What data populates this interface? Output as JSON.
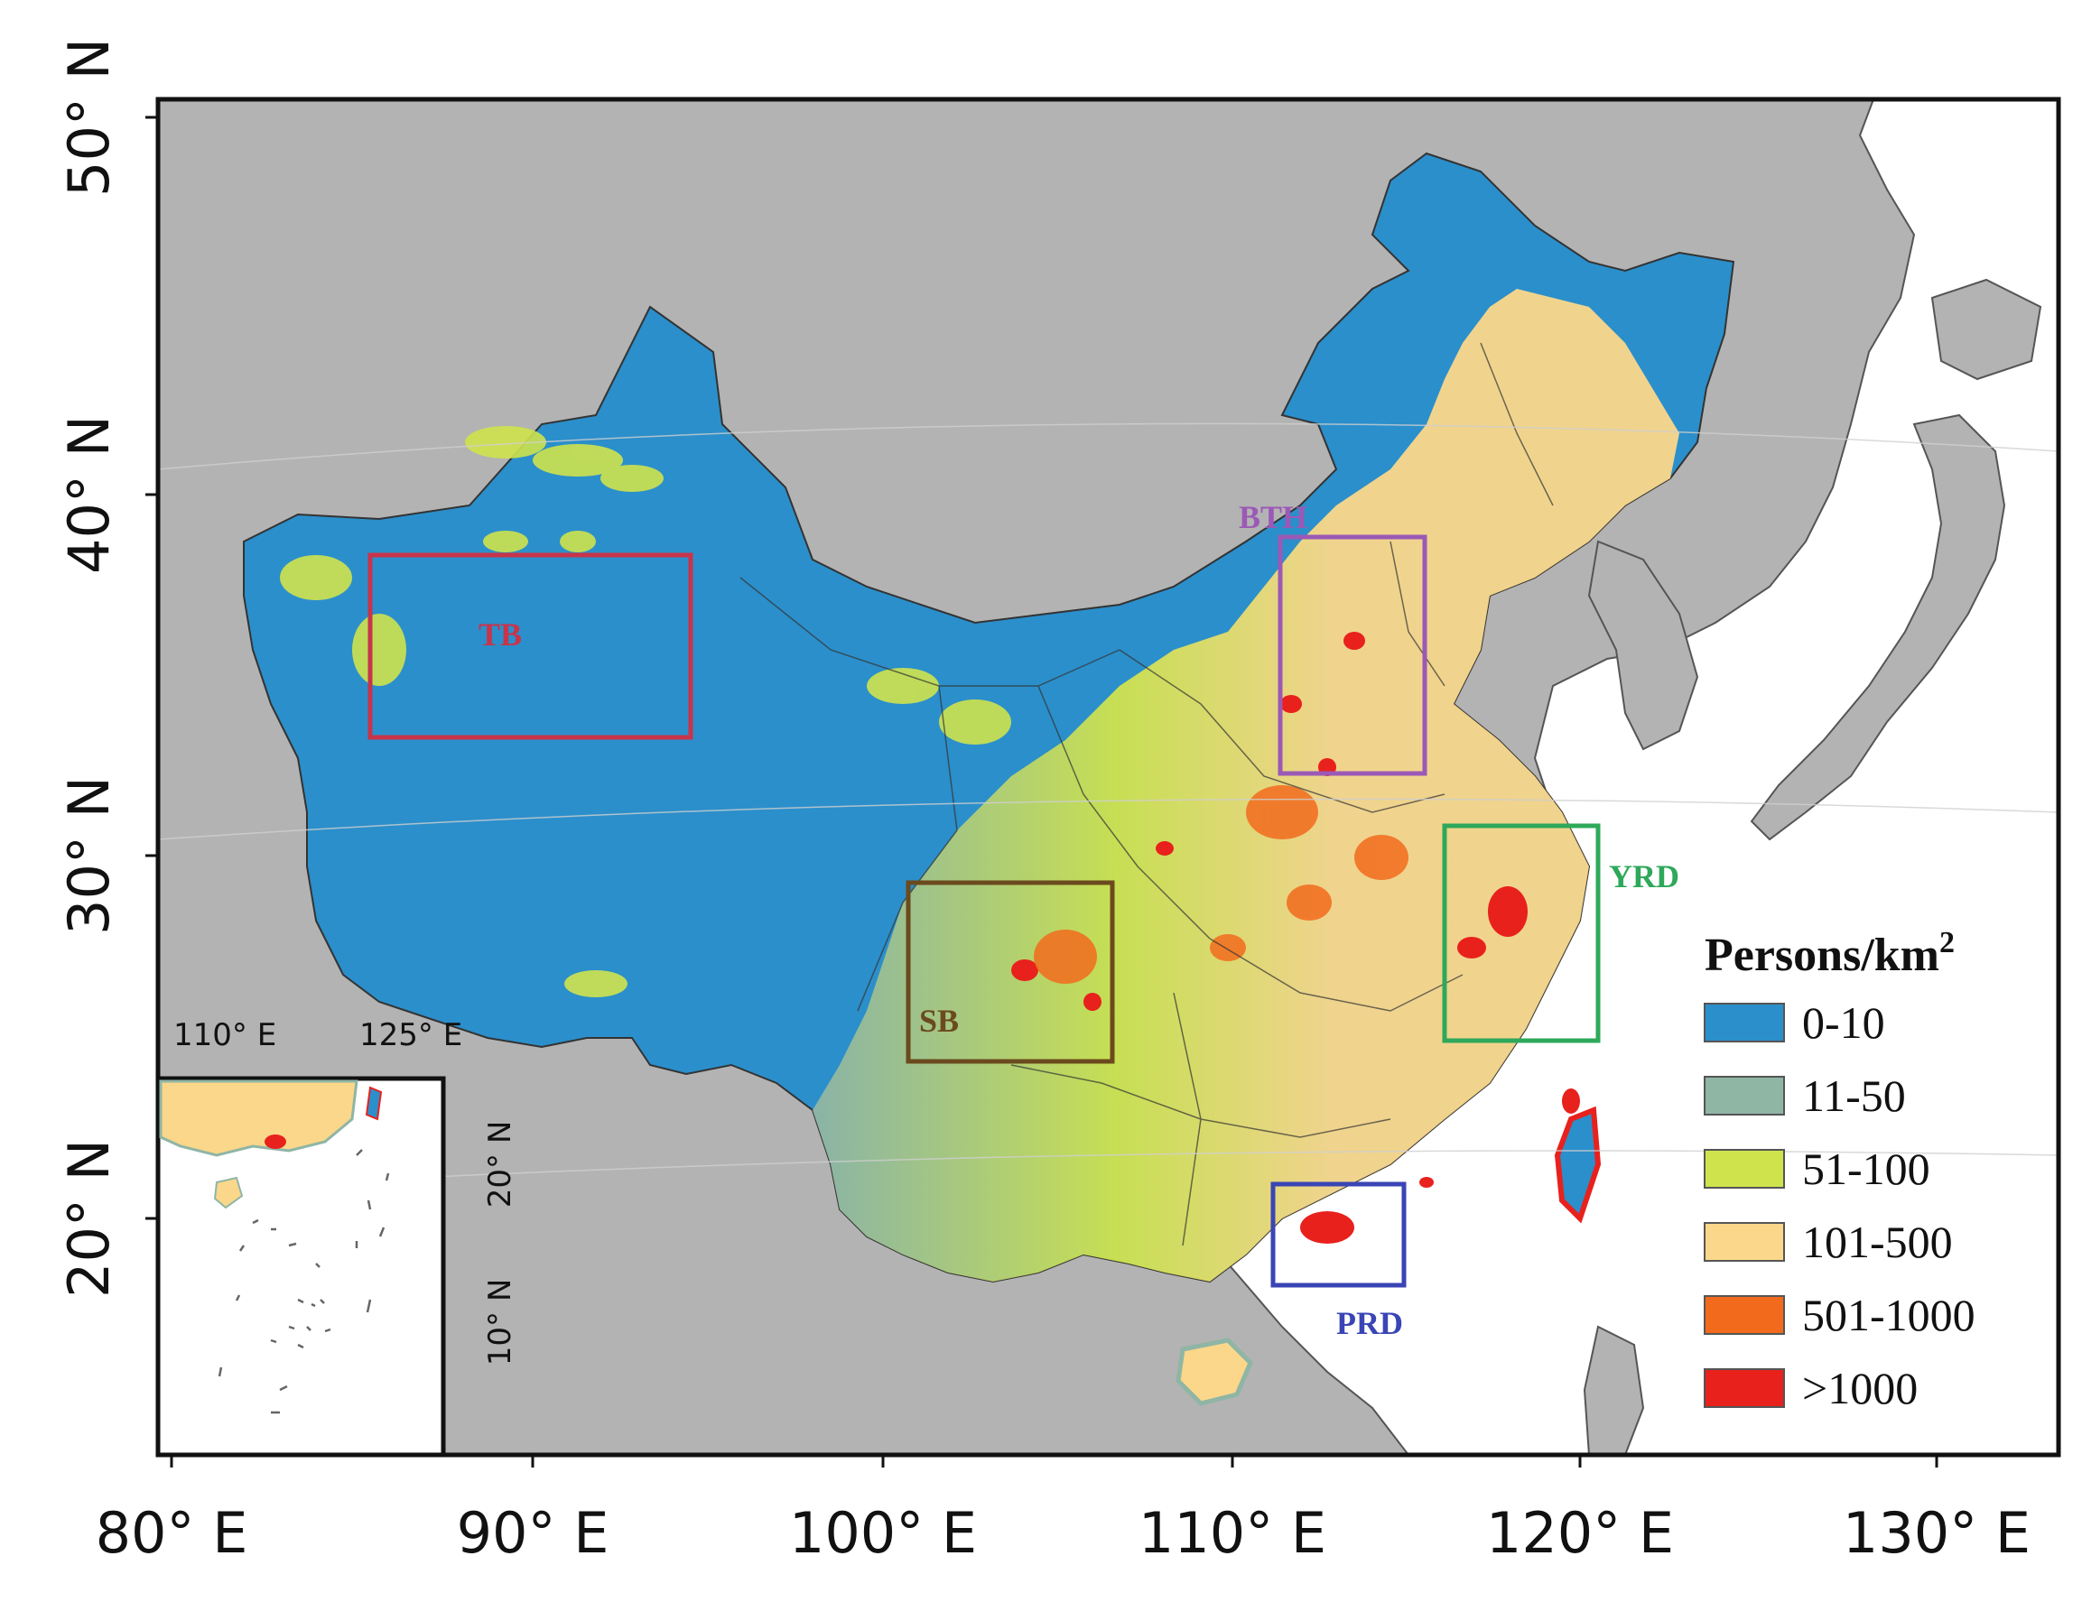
{
  "axes": {
    "lon_ticks": [
      "80° E",
      "90° E",
      "100° E",
      "110° E",
      "120° E",
      "130° E"
    ],
    "lat_ticks": [
      "50° N",
      "40° N",
      "30° N",
      "20° N"
    ]
  },
  "inset": {
    "lon_ticks": [
      "110° E",
      "125° E"
    ],
    "lat_ticks": [
      "20° N",
      "10° N"
    ]
  },
  "regions": [
    {
      "id": "TB",
      "label": "TB",
      "color": "#c8344a"
    },
    {
      "id": "BTH",
      "label": "BTH",
      "color": "#9b59b6"
    },
    {
      "id": "YRD",
      "label": "YRD",
      "color": "#2ea85a"
    },
    {
      "id": "SB",
      "label": "SB",
      "color": "#6b4a1e"
    },
    {
      "id": "PRD",
      "label": "PRD",
      "color": "#3a45b5"
    }
  ],
  "legend": {
    "title": "Persons/km",
    "title_superscript": "2",
    "items": [
      {
        "label": "0-10",
        "color": "#2b8fcb"
      },
      {
        "label": "11-50",
        "color": "#8fb5a5"
      },
      {
        "label": "51-100",
        "color": "#cfe34d"
      },
      {
        "label": "101-500",
        "color": "#fad78a"
      },
      {
        "label": "501-1000",
        "color": "#f26b1d"
      },
      {
        "label": ">1000",
        "color": "#e8211d"
      }
    ]
  },
  "colors": {
    "land": "#b3b3b3",
    "sea": "#ffffff",
    "border": "#444444"
  }
}
